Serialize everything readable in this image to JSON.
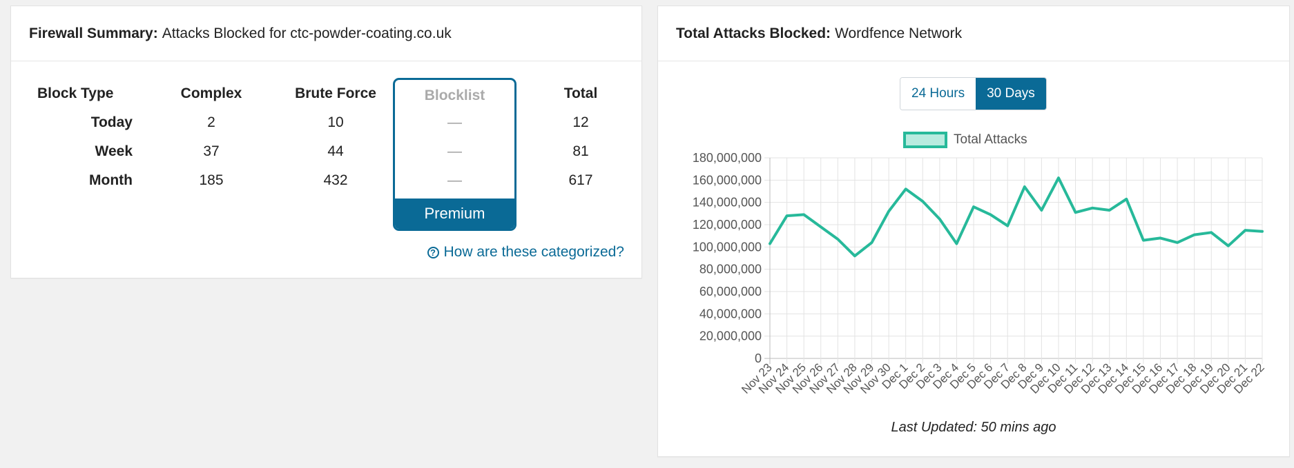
{
  "firewall": {
    "title_bold": "Firewall Summary:",
    "title_rest": "Attacks Blocked for ctc-powder-coating.co.uk",
    "headers": {
      "block_type": "Block Type",
      "complex": "Complex",
      "brute_force": "Brute Force",
      "blocklist": "Blocklist",
      "total": "Total"
    },
    "rows": [
      {
        "label": "Today",
        "complex": "2",
        "brute_force": "10",
        "blocklist": "—",
        "total": "12"
      },
      {
        "label": "Week",
        "complex": "37",
        "brute_force": "44",
        "blocklist": "—",
        "total": "81"
      },
      {
        "label": "Month",
        "complex": "185",
        "brute_force": "432",
        "blocklist": "—",
        "total": "617"
      }
    ],
    "premium_label": "Premium",
    "help_link": "How are these categorized?",
    "help_icon": "?"
  },
  "network": {
    "title_bold": "Total Attacks Blocked:",
    "title_rest": "Wordfence Network",
    "toggle": [
      "24 Hours",
      "30 Days"
    ],
    "active_toggle": "30 Days",
    "last_updated": "Last Updated: 50 mins ago"
  },
  "chart_data": {
    "type": "line",
    "title": "",
    "xlabel": "",
    "ylabel": "",
    "ylim": [
      0,
      180000000
    ],
    "yticks": [
      "0",
      "20,000,000",
      "40,000,000",
      "60,000,000",
      "80,000,000",
      "100,000,000",
      "120,000,000",
      "140,000,000",
      "160,000,000",
      "180,000,000"
    ],
    "categories": [
      "Nov 23",
      "Nov 24",
      "Nov 25",
      "Nov 26",
      "Nov 27",
      "Nov 28",
      "Nov 29",
      "Nov 30",
      "Dec 1",
      "Dec 2",
      "Dec 3",
      "Dec 4",
      "Dec 5",
      "Dec 6",
      "Dec 7",
      "Dec 8",
      "Dec 9",
      "Dec 10",
      "Dec 11",
      "Dec 12",
      "Dec 13",
      "Dec 14",
      "Dec 15",
      "Dec 16",
      "Dec 17",
      "Dec 18",
      "Dec 19",
      "Dec 20",
      "Dec 21",
      "Dec 22"
    ],
    "series": [
      {
        "name": "Total Attacks",
        "color": "#27b99a",
        "values": [
          103000000,
          128000000,
          129000000,
          118000000,
          107000000,
          92000000,
          104000000,
          132000000,
          152000000,
          141000000,
          125000000,
          103000000,
          136000000,
          129000000,
          119000000,
          154000000,
          133000000,
          162000000,
          131000000,
          135000000,
          133000000,
          143000000,
          106000000,
          108000000,
          104000000,
          111000000,
          113000000,
          101000000,
          115000000,
          114000000
        ]
      }
    ],
    "grid": true,
    "legend": "top"
  }
}
